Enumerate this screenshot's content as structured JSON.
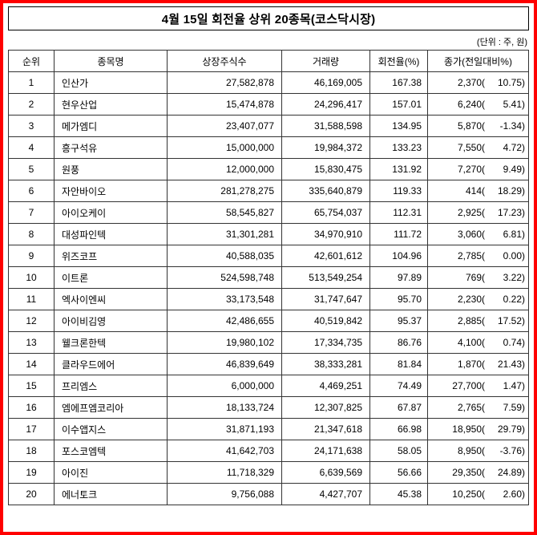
{
  "title": "4월 15일 회전율 상위 20종목(코스닥시장)",
  "unit_note": "(단위 : 주, 원)",
  "table": {
    "headers": [
      "순위",
      "종목명",
      "상장주식수",
      "거래량",
      "회전율(%)",
      "종가(전일대비%)"
    ],
    "rows": [
      {
        "rank": "1",
        "name": "인산가",
        "shares": "27,582,878",
        "volume": "46,169,005",
        "turnover": "167.38",
        "close": "2,370(",
        "change": "10.75)"
      },
      {
        "rank": "2",
        "name": "현우산업",
        "shares": "15,474,878",
        "volume": "24,296,417",
        "turnover": "157.01",
        "close": "6,240(",
        "change": "5.41)"
      },
      {
        "rank": "3",
        "name": "메가엠디",
        "shares": "23,407,077",
        "volume": "31,588,598",
        "turnover": "134.95",
        "close": "5,870(",
        "change": "-1.34)"
      },
      {
        "rank": "4",
        "name": "흥구석유",
        "shares": "15,000,000",
        "volume": "19,984,372",
        "turnover": "133.23",
        "close": "7,550(",
        "change": "4.72)"
      },
      {
        "rank": "5",
        "name": "원풍",
        "shares": "12,000,000",
        "volume": "15,830,475",
        "turnover": "131.92",
        "close": "7,270(",
        "change": "9.49)"
      },
      {
        "rank": "6",
        "name": "자안바이오",
        "shares": "281,278,275",
        "volume": "335,640,879",
        "turnover": "119.33",
        "close": "414(",
        "change": "18.29)"
      },
      {
        "rank": "7",
        "name": "아이오케이",
        "shares": "58,545,827",
        "volume": "65,754,037",
        "turnover": "112.31",
        "close": "2,925(",
        "change": "17.23)"
      },
      {
        "rank": "8",
        "name": "대성파인텍",
        "shares": "31,301,281",
        "volume": "34,970,910",
        "turnover": "111.72",
        "close": "3,060(",
        "change": "6.81)"
      },
      {
        "rank": "9",
        "name": "위즈코프",
        "shares": "40,588,035",
        "volume": "42,601,612",
        "turnover": "104.96",
        "close": "2,785(",
        "change": "0.00)"
      },
      {
        "rank": "10",
        "name": "이트론",
        "shares": "524,598,748",
        "volume": "513,549,254",
        "turnover": "97.89",
        "close": "769(",
        "change": "3.22)"
      },
      {
        "rank": "11",
        "name": "엑사이엔씨",
        "shares": "33,173,548",
        "volume": "31,747,647",
        "turnover": "95.70",
        "close": "2,230(",
        "change": "0.22)"
      },
      {
        "rank": "12",
        "name": "아이비김영",
        "shares": "42,486,655",
        "volume": "40,519,842",
        "turnover": "95.37",
        "close": "2,885(",
        "change": "17.52)"
      },
      {
        "rank": "13",
        "name": "웰크론한텍",
        "shares": "19,980,102",
        "volume": "17,334,735",
        "turnover": "86.76",
        "close": "4,100(",
        "change": "0.74)"
      },
      {
        "rank": "14",
        "name": "클라우드에어",
        "shares": "46,839,649",
        "volume": "38,333,281",
        "turnover": "81.84",
        "close": "1,870(",
        "change": "21.43)"
      },
      {
        "rank": "15",
        "name": "프리엠스",
        "shares": "6,000,000",
        "volume": "4,469,251",
        "turnover": "74.49",
        "close": "27,700(",
        "change": "1.47)"
      },
      {
        "rank": "16",
        "name": "엠에프엠코리아",
        "shares": "18,133,724",
        "volume": "12,307,825",
        "turnover": "67.87",
        "close": "2,765(",
        "change": "7.59)"
      },
      {
        "rank": "17",
        "name": "이수앱지스",
        "shares": "31,871,193",
        "volume": "21,347,618",
        "turnover": "66.98",
        "close": "18,950(",
        "change": "29.79)"
      },
      {
        "rank": "18",
        "name": "포스코엠텍",
        "shares": "41,642,703",
        "volume": "24,171,638",
        "turnover": "58.05",
        "close": "8,950(",
        "change": "-3.76)"
      },
      {
        "rank": "19",
        "name": "아이진",
        "shares": "11,718,329",
        "volume": "6,639,569",
        "turnover": "56.66",
        "close": "29,350(",
        "change": "24.89)"
      },
      {
        "rank": "20",
        "name": "에너토크",
        "shares": "9,756,088",
        "volume": "4,427,707",
        "turnover": "45.38",
        "close": "10,250(",
        "change": "2.60)"
      }
    ]
  }
}
